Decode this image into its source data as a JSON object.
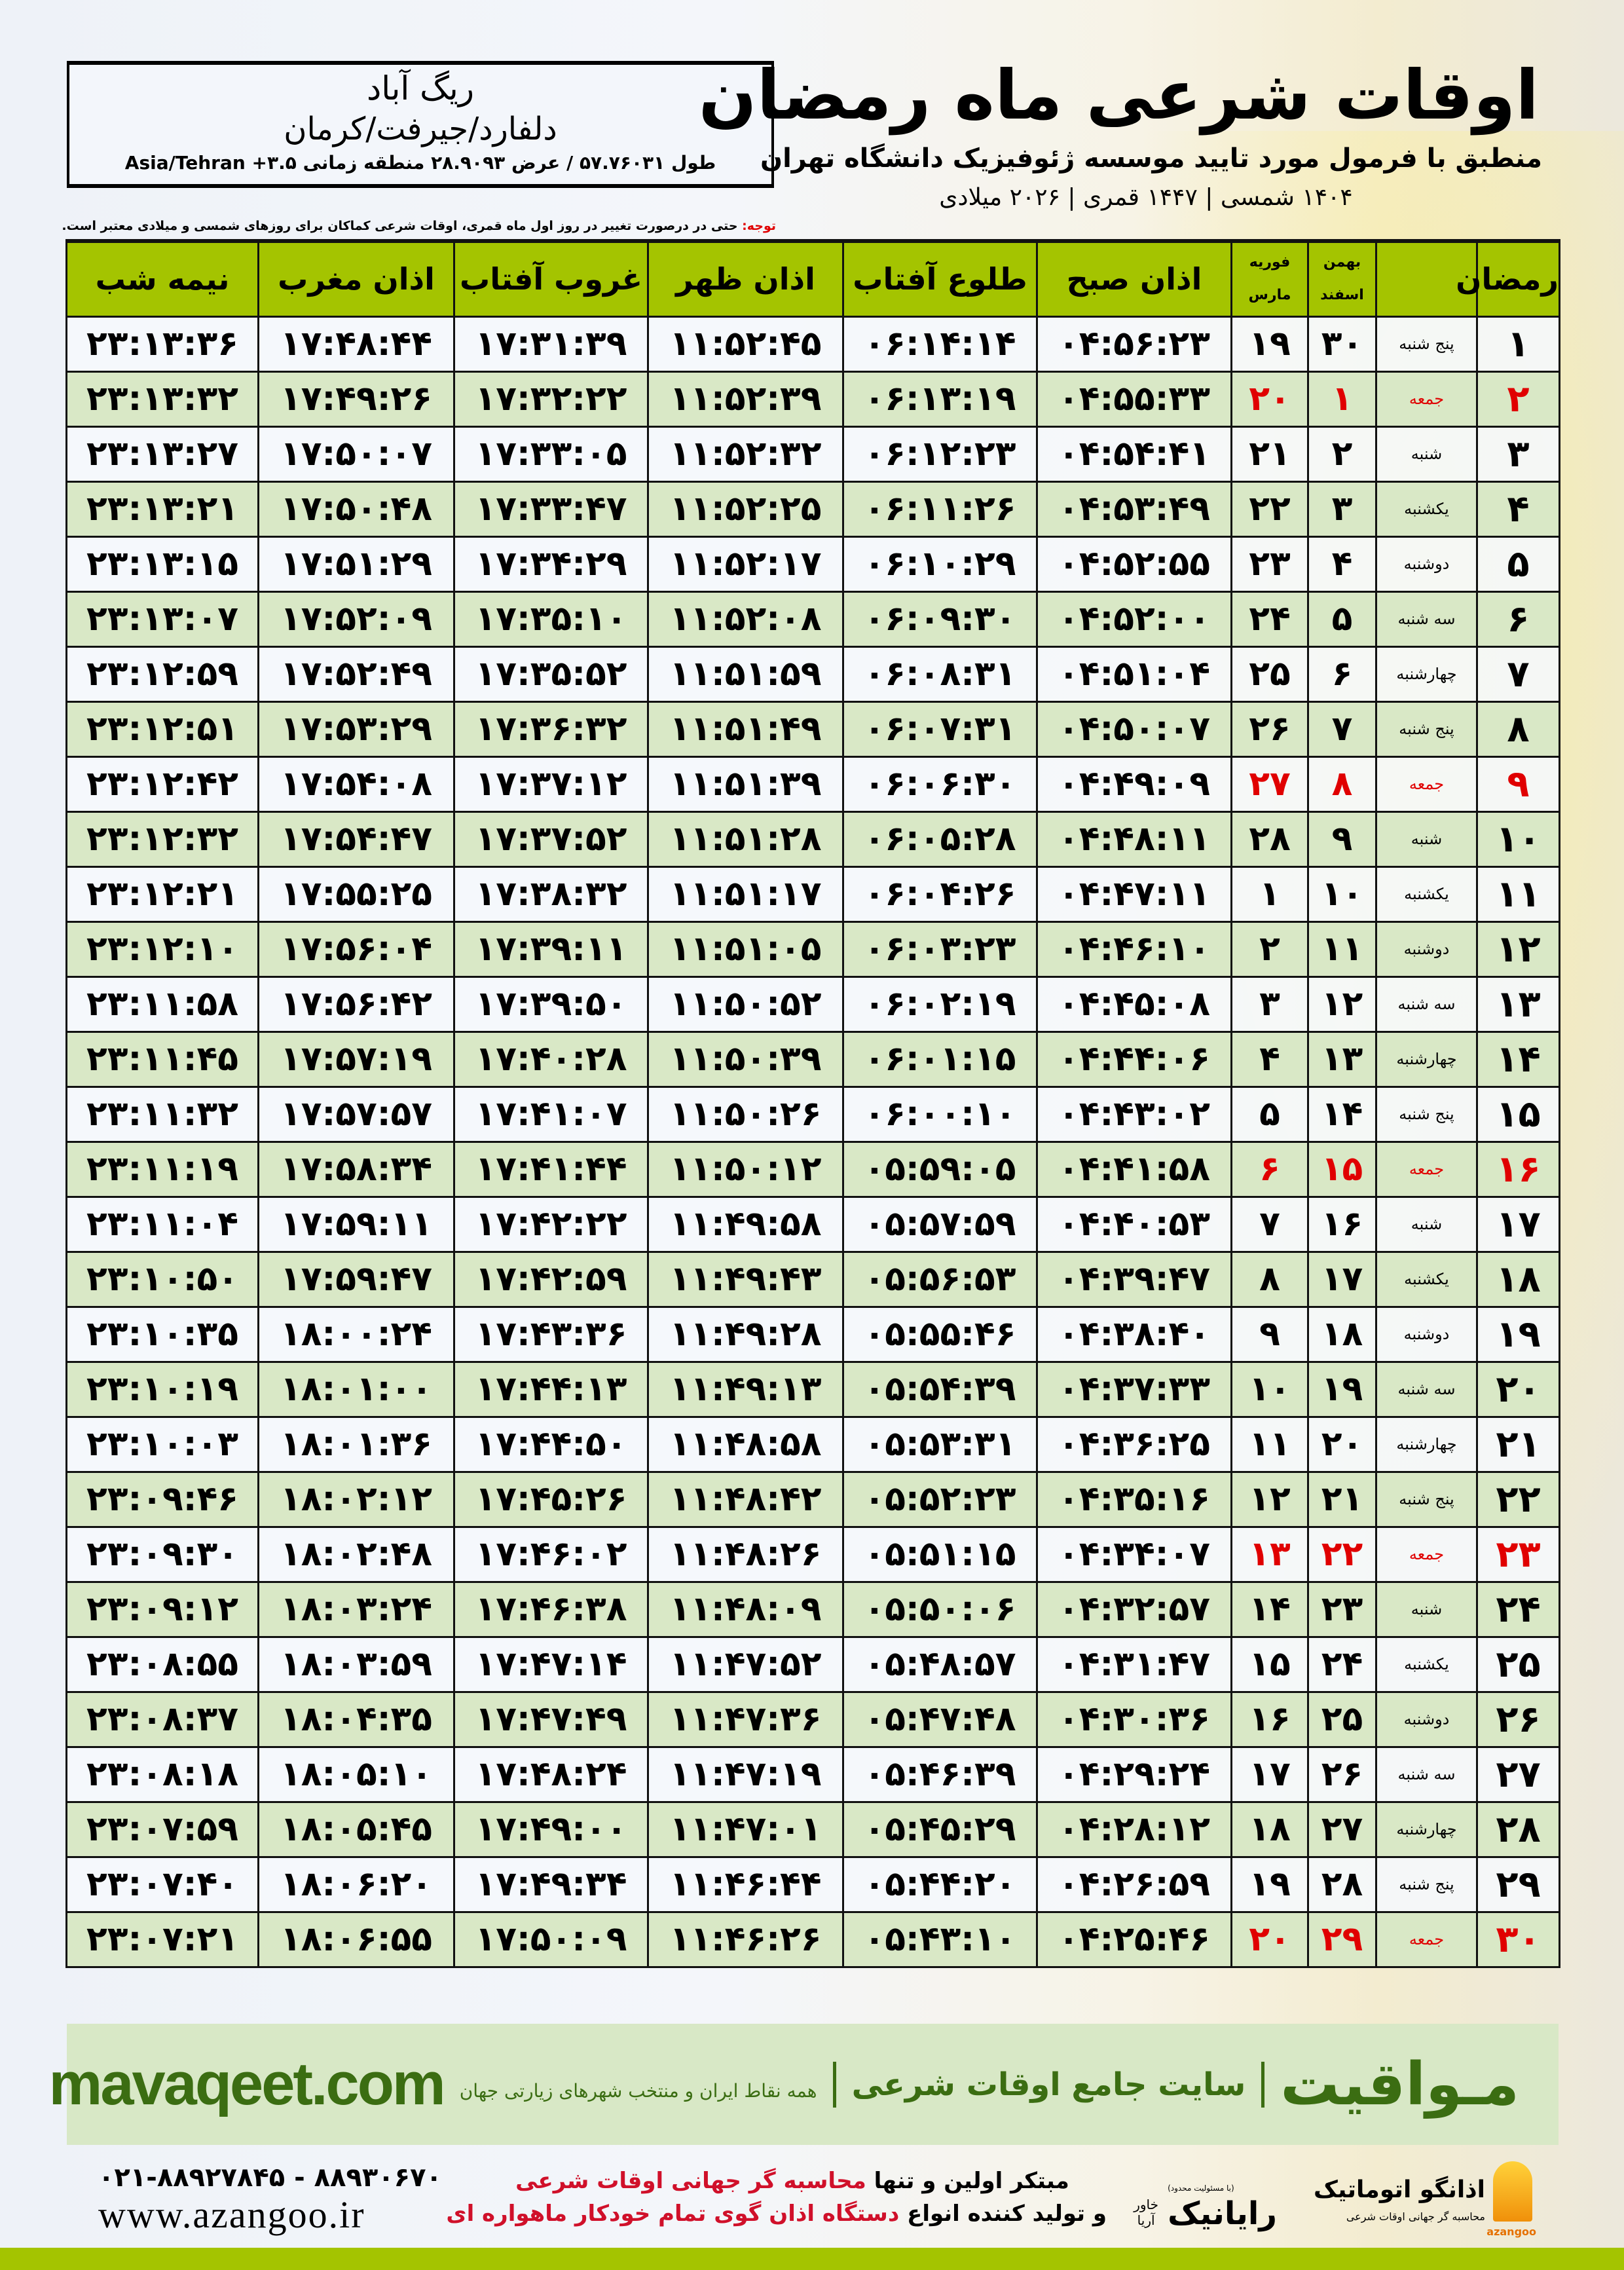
{
  "header": {
    "title": "اوقات شرعی ماه رمضان",
    "subtitle": "منطبق با فرمول مورد تایید موسسه ژئوفیزیک دانشگاه تهران",
    "dates": "۱۴۰۴ شمسی | ۱۴۴۷ قمری | ۲۰۲۶ میلادی"
  },
  "location": {
    "city": "ریگ آباد",
    "region": "دلفارد/جیرفت/کرمان",
    "coords": "طول ۵۷.۷۶۰۳۱ / عرض ۲۸.۹۰۹۳ منطقه زمانی ۳.۵+ Asia/Tehran"
  },
  "note": {
    "label": "توجه:",
    "text": " حتی در درصورت تغییر در روز اول ماه قمری، اوقات شرعی کماکان برای روزهای شمسی و میلادی معتبر است."
  },
  "colors": {
    "header_green": "#a4c400",
    "row_green": "#d9e8c6",
    "friday_red": "#e00000",
    "brand_green": "#3b6d12"
  },
  "table": {
    "columns": {
      "ramadan": "رمضان",
      "shamsi_top": "بهمن",
      "shamsi_bottom": "اسفند",
      "miladi_top": "فوریه",
      "miladi_bottom": "مارس",
      "sobh": "اذان صبح",
      "tolu": "طلوع آفتاب",
      "zohr": "اذان ظهر",
      "ghorub": "غروب آفتاب",
      "maghreb": "اذان مغرب",
      "nime": "نیمه شب"
    },
    "rows": [
      {
        "ramadan": "۱",
        "weekday": "پنج شنبه",
        "shamsi": "۳۰",
        "miladi": "۱۹",
        "sobh": "۰۴:۵۶:۲۳",
        "tolu": "۰۶:۱۴:۱۴",
        "zohr": "۱۱:۵۲:۴۵",
        "ghorub": "۱۷:۳۱:۳۹",
        "maghreb": "۱۷:۴۸:۴۴",
        "nime": "۲۳:۱۳:۳۶",
        "friday": false
      },
      {
        "ramadan": "۲",
        "weekday": "جمعه",
        "shamsi": "۱",
        "miladi": "۲۰",
        "sobh": "۰۴:۵۵:۳۳",
        "tolu": "۰۶:۱۳:۱۹",
        "zohr": "۱۱:۵۲:۳۹",
        "ghorub": "۱۷:۳۲:۲۲",
        "maghreb": "۱۷:۴۹:۲۶",
        "nime": "۲۳:۱۳:۳۲",
        "friday": true
      },
      {
        "ramadan": "۳",
        "weekday": "شنبه",
        "shamsi": "۲",
        "miladi": "۲۱",
        "sobh": "۰۴:۵۴:۴۱",
        "tolu": "۰۶:۱۲:۲۳",
        "zohr": "۱۱:۵۲:۳۲",
        "ghorub": "۱۷:۳۳:۰۵",
        "maghreb": "۱۷:۵۰:۰۷",
        "nime": "۲۳:۱۳:۲۷",
        "friday": false
      },
      {
        "ramadan": "۴",
        "weekday": "یکشنبه",
        "shamsi": "۳",
        "miladi": "۲۲",
        "sobh": "۰۴:۵۳:۴۹",
        "tolu": "۰۶:۱۱:۲۶",
        "zohr": "۱۱:۵۲:۲۵",
        "ghorub": "۱۷:۳۳:۴۷",
        "maghreb": "۱۷:۵۰:۴۸",
        "nime": "۲۳:۱۳:۲۱",
        "friday": false
      },
      {
        "ramadan": "۵",
        "weekday": "دوشنبه",
        "shamsi": "۴",
        "miladi": "۲۳",
        "sobh": "۰۴:۵۲:۵۵",
        "tolu": "۰۶:۱۰:۲۹",
        "zohr": "۱۱:۵۲:۱۷",
        "ghorub": "۱۷:۳۴:۲۹",
        "maghreb": "۱۷:۵۱:۲۹",
        "nime": "۲۳:۱۳:۱۵",
        "friday": false
      },
      {
        "ramadan": "۶",
        "weekday": "سه شنبه",
        "shamsi": "۵",
        "miladi": "۲۴",
        "sobh": "۰۴:۵۲:۰۰",
        "tolu": "۰۶:۰۹:۳۰",
        "zohr": "۱۱:۵۲:۰۸",
        "ghorub": "۱۷:۳۵:۱۰",
        "maghreb": "۱۷:۵۲:۰۹",
        "nime": "۲۳:۱۳:۰۷",
        "friday": false
      },
      {
        "ramadan": "۷",
        "weekday": "چهارشنبه",
        "shamsi": "۶",
        "miladi": "۲۵",
        "sobh": "۰۴:۵۱:۰۴",
        "tolu": "۰۶:۰۸:۳۱",
        "zohr": "۱۱:۵۱:۵۹",
        "ghorub": "۱۷:۳۵:۵۲",
        "maghreb": "۱۷:۵۲:۴۹",
        "nime": "۲۳:۱۲:۵۹",
        "friday": false
      },
      {
        "ramadan": "۸",
        "weekday": "پنج شنبه",
        "shamsi": "۷",
        "miladi": "۲۶",
        "sobh": "۰۴:۵۰:۰۷",
        "tolu": "۰۶:۰۷:۳۱",
        "zohr": "۱۱:۵۱:۴۹",
        "ghorub": "۱۷:۳۶:۳۲",
        "maghreb": "۱۷:۵۳:۲۹",
        "nime": "۲۳:۱۲:۵۱",
        "friday": false
      },
      {
        "ramadan": "۹",
        "weekday": "جمعه",
        "shamsi": "۸",
        "miladi": "۲۷",
        "sobh": "۰۴:۴۹:۰۹",
        "tolu": "۰۶:۰۶:۳۰",
        "zohr": "۱۱:۵۱:۳۹",
        "ghorub": "۱۷:۳۷:۱۲",
        "maghreb": "۱۷:۵۴:۰۸",
        "nime": "۲۳:۱۲:۴۲",
        "friday": true
      },
      {
        "ramadan": "۱۰",
        "weekday": "شنبه",
        "shamsi": "۹",
        "miladi": "۲۸",
        "sobh": "۰۴:۴۸:۱۱",
        "tolu": "۰۶:۰۵:۲۸",
        "zohr": "۱۱:۵۱:۲۸",
        "ghorub": "۱۷:۳۷:۵۲",
        "maghreb": "۱۷:۵۴:۴۷",
        "nime": "۲۳:۱۲:۳۲",
        "friday": false
      },
      {
        "ramadan": "۱۱",
        "weekday": "یکشنبه",
        "shamsi": "۱۰",
        "miladi": "۱",
        "sobh": "۰۴:۴۷:۱۱",
        "tolu": "۰۶:۰۴:۲۶",
        "zohr": "۱۱:۵۱:۱۷",
        "ghorub": "۱۷:۳۸:۳۲",
        "maghreb": "۱۷:۵۵:۲۵",
        "nime": "۲۳:۱۲:۲۱",
        "friday": false
      },
      {
        "ramadan": "۱۲",
        "weekday": "دوشنبه",
        "shamsi": "۱۱",
        "miladi": "۲",
        "sobh": "۰۴:۴۶:۱۰",
        "tolu": "۰۶:۰۳:۲۳",
        "zohr": "۱۱:۵۱:۰۵",
        "ghorub": "۱۷:۳۹:۱۱",
        "maghreb": "۱۷:۵۶:۰۴",
        "nime": "۲۳:۱۲:۱۰",
        "friday": false
      },
      {
        "ramadan": "۱۳",
        "weekday": "سه شنبه",
        "shamsi": "۱۲",
        "miladi": "۳",
        "sobh": "۰۴:۴۵:۰۸",
        "tolu": "۰۶:۰۲:۱۹",
        "zohr": "۱۱:۵۰:۵۲",
        "ghorub": "۱۷:۳۹:۵۰",
        "maghreb": "۱۷:۵۶:۴۲",
        "nime": "۲۳:۱۱:۵۸",
        "friday": false
      },
      {
        "ramadan": "۱۴",
        "weekday": "چهارشنبه",
        "shamsi": "۱۳",
        "miladi": "۴",
        "sobh": "۰۴:۴۴:۰۶",
        "tolu": "۰۶:۰۱:۱۵",
        "zohr": "۱۱:۵۰:۳۹",
        "ghorub": "۱۷:۴۰:۲۸",
        "maghreb": "۱۷:۵۷:۱۹",
        "nime": "۲۳:۱۱:۴۵",
        "friday": false
      },
      {
        "ramadan": "۱۵",
        "weekday": "پنج شنبه",
        "shamsi": "۱۴",
        "miladi": "۵",
        "sobh": "۰۴:۴۳:۰۲",
        "tolu": "۰۶:۰۰:۱۰",
        "zohr": "۱۱:۵۰:۲۶",
        "ghorub": "۱۷:۴۱:۰۷",
        "maghreb": "۱۷:۵۷:۵۷",
        "nime": "۲۳:۱۱:۳۲",
        "friday": false
      },
      {
        "ramadan": "۱۶",
        "weekday": "جمعه",
        "shamsi": "۱۵",
        "miladi": "۶",
        "sobh": "۰۴:۴۱:۵۸",
        "tolu": "۰۵:۵۹:۰۵",
        "zohr": "۱۱:۵۰:۱۲",
        "ghorub": "۱۷:۴۱:۴۴",
        "maghreb": "۱۷:۵۸:۳۴",
        "nime": "۲۳:۱۱:۱۹",
        "friday": true
      },
      {
        "ramadan": "۱۷",
        "weekday": "شنبه",
        "shamsi": "۱۶",
        "miladi": "۷",
        "sobh": "۰۴:۴۰:۵۳",
        "tolu": "۰۵:۵۷:۵۹",
        "zohr": "۱۱:۴۹:۵۸",
        "ghorub": "۱۷:۴۲:۲۲",
        "maghreb": "۱۷:۵۹:۱۱",
        "nime": "۲۳:۱۱:۰۴",
        "friday": false
      },
      {
        "ramadan": "۱۸",
        "weekday": "یکشنبه",
        "shamsi": "۱۷",
        "miladi": "۸",
        "sobh": "۰۴:۳۹:۴۷",
        "tolu": "۰۵:۵۶:۵۳",
        "zohr": "۱۱:۴۹:۴۳",
        "ghorub": "۱۷:۴۲:۵۹",
        "maghreb": "۱۷:۵۹:۴۷",
        "nime": "۲۳:۱۰:۵۰",
        "friday": false
      },
      {
        "ramadan": "۱۹",
        "weekday": "دوشنبه",
        "shamsi": "۱۸",
        "miladi": "۹",
        "sobh": "۰۴:۳۸:۴۰",
        "tolu": "۰۵:۵۵:۴۶",
        "zohr": "۱۱:۴۹:۲۸",
        "ghorub": "۱۷:۴۳:۳۶",
        "maghreb": "۱۸:۰۰:۲۴",
        "nime": "۲۳:۱۰:۳۵",
        "friday": false
      },
      {
        "ramadan": "۲۰",
        "weekday": "سه شنبه",
        "shamsi": "۱۹",
        "miladi": "۱۰",
        "sobh": "۰۴:۳۷:۳۳",
        "tolu": "۰۵:۵۴:۳۹",
        "zohr": "۱۱:۴۹:۱۳",
        "ghorub": "۱۷:۴۴:۱۳",
        "maghreb": "۱۸:۰۱:۰۰",
        "nime": "۲۳:۱۰:۱۹",
        "friday": false
      },
      {
        "ramadan": "۲۱",
        "weekday": "چهارشنبه",
        "shamsi": "۲۰",
        "miladi": "۱۱",
        "sobh": "۰۴:۳۶:۲۵",
        "tolu": "۰۵:۵۳:۳۱",
        "zohr": "۱۱:۴۸:۵۸",
        "ghorub": "۱۷:۴۴:۵۰",
        "maghreb": "۱۸:۰۱:۳۶",
        "nime": "۲۳:۱۰:۰۳",
        "friday": false
      },
      {
        "ramadan": "۲۲",
        "weekday": "پنج شنبه",
        "shamsi": "۲۱",
        "miladi": "۱۲",
        "sobh": "۰۴:۳۵:۱۶",
        "tolu": "۰۵:۵۲:۲۳",
        "zohr": "۱۱:۴۸:۴۲",
        "ghorub": "۱۷:۴۵:۲۶",
        "maghreb": "۱۸:۰۲:۱۲",
        "nime": "۲۳:۰۹:۴۶",
        "friday": false
      },
      {
        "ramadan": "۲۳",
        "weekday": "جمعه",
        "shamsi": "۲۲",
        "miladi": "۱۳",
        "sobh": "۰۴:۳۴:۰۷",
        "tolu": "۰۵:۵۱:۱۵",
        "zohr": "۱۱:۴۸:۲۶",
        "ghorub": "۱۷:۴۶:۰۲",
        "maghreb": "۱۸:۰۲:۴۸",
        "nime": "۲۳:۰۹:۳۰",
        "friday": true
      },
      {
        "ramadan": "۲۴",
        "weekday": "شنبه",
        "shamsi": "۲۳",
        "miladi": "۱۴",
        "sobh": "۰۴:۳۲:۵۷",
        "tolu": "۰۵:۵۰:۰۶",
        "zohr": "۱۱:۴۸:۰۹",
        "ghorub": "۱۷:۴۶:۳۸",
        "maghreb": "۱۸:۰۳:۲۴",
        "nime": "۲۳:۰۹:۱۲",
        "friday": false
      },
      {
        "ramadan": "۲۵",
        "weekday": "یکشنبه",
        "shamsi": "۲۴",
        "miladi": "۱۵",
        "sobh": "۰۴:۳۱:۴۷",
        "tolu": "۰۵:۴۸:۵۷",
        "zohr": "۱۱:۴۷:۵۲",
        "ghorub": "۱۷:۴۷:۱۴",
        "maghreb": "۱۸:۰۳:۵۹",
        "nime": "۲۳:۰۸:۵۵",
        "friday": false
      },
      {
        "ramadan": "۲۶",
        "weekday": "دوشنبه",
        "shamsi": "۲۵",
        "miladi": "۱۶",
        "sobh": "۰۴:۳۰:۳۶",
        "tolu": "۰۵:۴۷:۴۸",
        "zohr": "۱۱:۴۷:۳۶",
        "ghorub": "۱۷:۴۷:۴۹",
        "maghreb": "۱۸:۰۴:۳۵",
        "nime": "۲۳:۰۸:۳۷",
        "friday": false
      },
      {
        "ramadan": "۲۷",
        "weekday": "سه شنبه",
        "shamsi": "۲۶",
        "miladi": "۱۷",
        "sobh": "۰۴:۲۹:۲۴",
        "tolu": "۰۵:۴۶:۳۹",
        "zohr": "۱۱:۴۷:۱۹",
        "ghorub": "۱۷:۴۸:۲۴",
        "maghreb": "۱۸:۰۵:۱۰",
        "nime": "۲۳:۰۸:۱۸",
        "friday": false
      },
      {
        "ramadan": "۲۸",
        "weekday": "چهارشنبه",
        "shamsi": "۲۷",
        "miladi": "۱۸",
        "sobh": "۰۴:۲۸:۱۲",
        "tolu": "۰۵:۴۵:۲۹",
        "zohr": "۱۱:۴۷:۰۱",
        "ghorub": "۱۷:۴۹:۰۰",
        "maghreb": "۱۸:۰۵:۴۵",
        "nime": "۲۳:۰۷:۵۹",
        "friday": false
      },
      {
        "ramadan": "۲۹",
        "weekday": "پنج شنبه",
        "shamsi": "۲۸",
        "miladi": "۱۹",
        "sobh": "۰۴:۲۶:۵۹",
        "tolu": "۰۵:۴۴:۲۰",
        "zohr": "۱۱:۴۶:۴۴",
        "ghorub": "۱۷:۴۹:۳۴",
        "maghreb": "۱۸:۰۶:۲۰",
        "nime": "۲۳:۰۷:۴۰",
        "friday": false
      },
      {
        "ramadan": "۳۰",
        "weekday": "جمعه",
        "shamsi": "۲۹",
        "miladi": "۲۰",
        "sobh": "۰۴:۲۵:۴۶",
        "tolu": "۰۵:۴۳:۱۰",
        "zohr": "۱۱:۴۶:۲۶",
        "ghorub": "۱۷:۵۰:۰۹",
        "maghreb": "۱۸:۰۶:۵۵",
        "nime": "۲۳:۰۷:۲۱",
        "friday": true
      }
    ]
  },
  "footer": {
    "site": "mavaqeet.com",
    "brand": "مـواقیت",
    "tagline": "سایت جامع اوقات شرعی",
    "tagline2": "همه نقاط ایران و منتخب شهرهای زیارتی جهان",
    "phone": "۰۲۱-۸۸۹۲۷۸۴۵ - ۸۸۹۳۰۶۷۰",
    "web": "www.azangoo.ir",
    "slogan1": "مبتکر اولین و تنها ",
    "slogan1_red": "محاسبه گر جهانی اوقات شرعی",
    "slogan2": "و تولید کننده انواع ",
    "slogan2_red": "دستگاه اذان گوی تمام خودکار ماهواره ای",
    "rayanik": "رایانیک",
    "rayanik_sub": "خاور آریا",
    "rayanik_note": "(با مسئولیت محدود)",
    "azangoo_name": "اذانگو اتوماتیک",
    "azangoo_sub": "محاسبه گر جهانی اوقات شرعی",
    "azangoo_latin": "azangoo"
  }
}
